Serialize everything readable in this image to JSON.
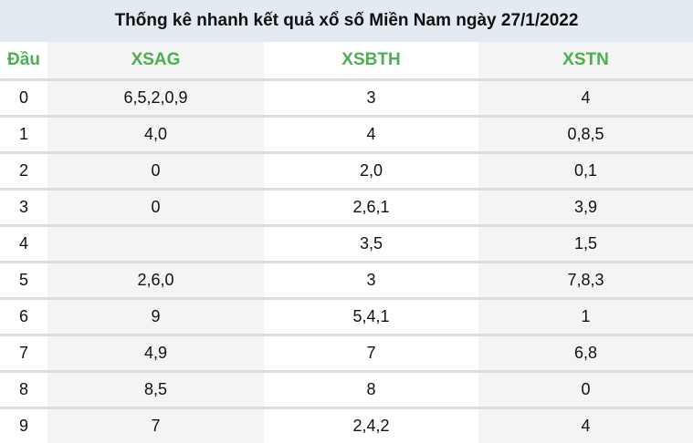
{
  "title": "Thống kê nhanh kết quả xổ số Miền Nam ngày 27/1/2022",
  "headers": [
    "Đầu",
    "XSAG",
    "XSBTH",
    "XSTN"
  ],
  "rows": [
    [
      "0",
      "6,5,2,0,9",
      "3",
      "4"
    ],
    [
      "1",
      "4,0",
      "4",
      "0,8,5"
    ],
    [
      "2",
      "0",
      "2,0",
      "0,1"
    ],
    [
      "3",
      "0",
      "2,6,1",
      "3,9"
    ],
    [
      "4",
      "",
      "3,5",
      "1,5"
    ],
    [
      "5",
      "2,6,0",
      "3",
      "7,8,3"
    ],
    [
      "6",
      "9",
      "5,4,1",
      "1"
    ],
    [
      "7",
      "4,9",
      "7",
      "6,8"
    ],
    [
      "8",
      "8,5",
      "8",
      "0"
    ],
    [
      "9",
      "7",
      "2,4,2",
      "4"
    ]
  ],
  "colors": {
    "header_text": "#4caf50",
    "title_bg": "#e2ebf2"
  }
}
